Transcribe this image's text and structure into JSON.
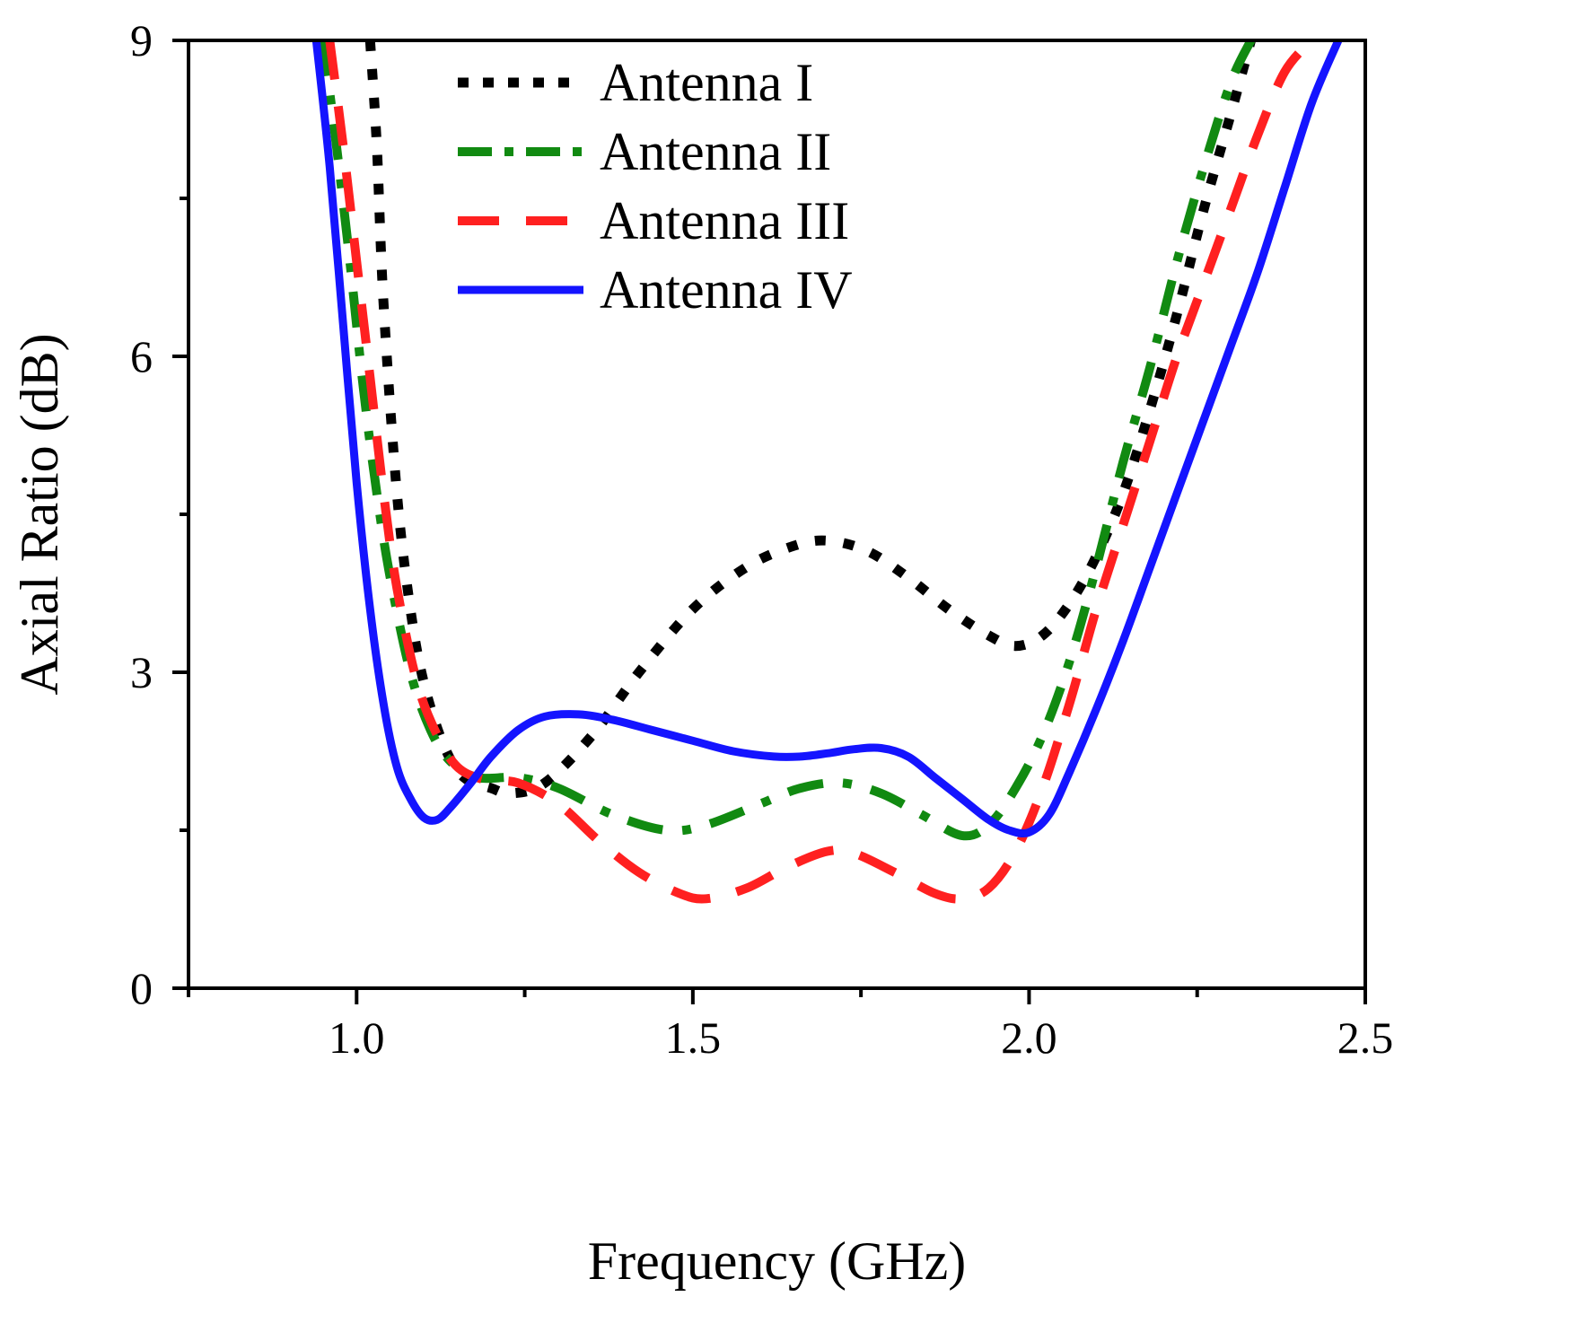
{
  "chart_data": {
    "type": "line",
    "title": "",
    "xlabel": "Frequency (GHz)",
    "ylabel": "Axial Ratio (dB)",
    "xlim": [
      0.75,
      2.5
    ],
    "ylim": [
      0,
      9
    ],
    "xticks": [
      1.0,
      1.5,
      2.0,
      2.5
    ],
    "xtick_labels": [
      "1.0",
      "1.5",
      "2.0",
      "2.5"
    ],
    "yticks": [
      0,
      3,
      6,
      9
    ],
    "ytick_labels": [
      "0",
      "3",
      "6",
      "9"
    ],
    "grid": false,
    "legend_position": "top-center",
    "series": [
      {
        "name": "Antenna I",
        "color": "#000000",
        "style": "dotted",
        "x": [
          1.02,
          1.03,
          1.04,
          1.06,
          1.08,
          1.1,
          1.13,
          1.16,
          1.2,
          1.23,
          1.28,
          1.35,
          1.42,
          1.5,
          1.58,
          1.65,
          1.7,
          1.76,
          1.82,
          1.88,
          1.94,
          1.98,
          2.02,
          2.06,
          2.1,
          2.14,
          2.18,
          2.22,
          2.26,
          2.3,
          2.33
        ],
        "y": [
          9.0,
          8.0,
          6.5,
          4.7,
          3.6,
          2.9,
          2.3,
          2.0,
          1.9,
          1.85,
          1.95,
          2.4,
          3.0,
          3.6,
          4.0,
          4.2,
          4.25,
          4.15,
          3.9,
          3.6,
          3.35,
          3.25,
          3.35,
          3.65,
          4.1,
          4.7,
          5.5,
          6.4,
          7.4,
          8.3,
          9.0
        ]
      },
      {
        "name": "Antenna II",
        "color": "#118a11",
        "style": "dash-dot",
        "x": [
          0.95,
          0.97,
          0.99,
          1.01,
          1.03,
          1.05,
          1.08,
          1.11,
          1.14,
          1.18,
          1.24,
          1.3,
          1.38,
          1.46,
          1.52,
          1.6,
          1.66,
          1.72,
          1.78,
          1.84,
          1.9,
          1.94,
          1.98,
          2.02,
          2.06,
          2.1,
          2.14,
          2.18,
          2.22,
          2.26,
          2.3,
          2.33
        ],
        "y": [
          9.0,
          8.0,
          6.9,
          5.7,
          4.7,
          3.9,
          3.0,
          2.45,
          2.15,
          2.0,
          2.0,
          1.9,
          1.65,
          1.5,
          1.55,
          1.75,
          1.9,
          1.95,
          1.85,
          1.65,
          1.45,
          1.55,
          1.9,
          2.4,
          3.1,
          4.0,
          5.0,
          5.9,
          6.9,
          7.8,
          8.6,
          9.0
        ]
      },
      {
        "name": "Antenna III",
        "color": "#ff2020",
        "style": "dashed",
        "x": [
          0.96,
          0.98,
          1.0,
          1.02,
          1.04,
          1.06,
          1.09,
          1.12,
          1.15,
          1.19,
          1.24,
          1.3,
          1.36,
          1.42,
          1.48,
          1.52,
          1.58,
          1.64,
          1.7,
          1.74,
          1.8,
          1.86,
          1.9,
          1.94,
          1.98,
          2.02,
          2.06,
          2.1,
          2.14,
          2.18,
          2.22,
          2.26,
          2.3,
          2.34,
          2.38,
          2.42
        ],
        "y": [
          9.0,
          8.0,
          6.9,
          5.8,
          4.7,
          3.8,
          2.9,
          2.4,
          2.1,
          1.98,
          1.95,
          1.75,
          1.4,
          1.1,
          0.9,
          0.85,
          0.95,
          1.15,
          1.3,
          1.28,
          1.1,
          0.9,
          0.85,
          0.95,
          1.3,
          1.9,
          2.7,
          3.6,
          4.4,
          5.2,
          6.0,
          6.7,
          7.4,
          8.1,
          8.7,
          9.0
        ]
      },
      {
        "name": "Antenna IV",
        "color": "#1414ff",
        "style": "solid",
        "x": [
          0.94,
          0.96,
          0.98,
          1.0,
          1.02,
          1.04,
          1.06,
          1.08,
          1.1,
          1.12,
          1.14,
          1.17,
          1.2,
          1.24,
          1.28,
          1.33,
          1.38,
          1.44,
          1.5,
          1.56,
          1.62,
          1.66,
          1.7,
          1.74,
          1.78,
          1.82,
          1.86,
          1.9,
          1.94,
          1.97,
          2.0,
          2.03,
          2.06,
          2.1,
          2.14,
          2.18,
          2.22,
          2.26,
          2.3,
          2.34,
          2.38,
          2.42,
          2.46
        ],
        "y": [
          9.0,
          7.8,
          6.3,
          4.8,
          3.6,
          2.7,
          2.1,
          1.8,
          1.62,
          1.6,
          1.72,
          1.95,
          2.2,
          2.45,
          2.58,
          2.6,
          2.55,
          2.45,
          2.35,
          2.25,
          2.2,
          2.2,
          2.23,
          2.27,
          2.28,
          2.2,
          2.0,
          1.8,
          1.6,
          1.5,
          1.48,
          1.65,
          2.05,
          2.65,
          3.3,
          4.0,
          4.7,
          5.4,
          6.1,
          6.8,
          7.6,
          8.4,
          9.0
        ]
      }
    ]
  }
}
